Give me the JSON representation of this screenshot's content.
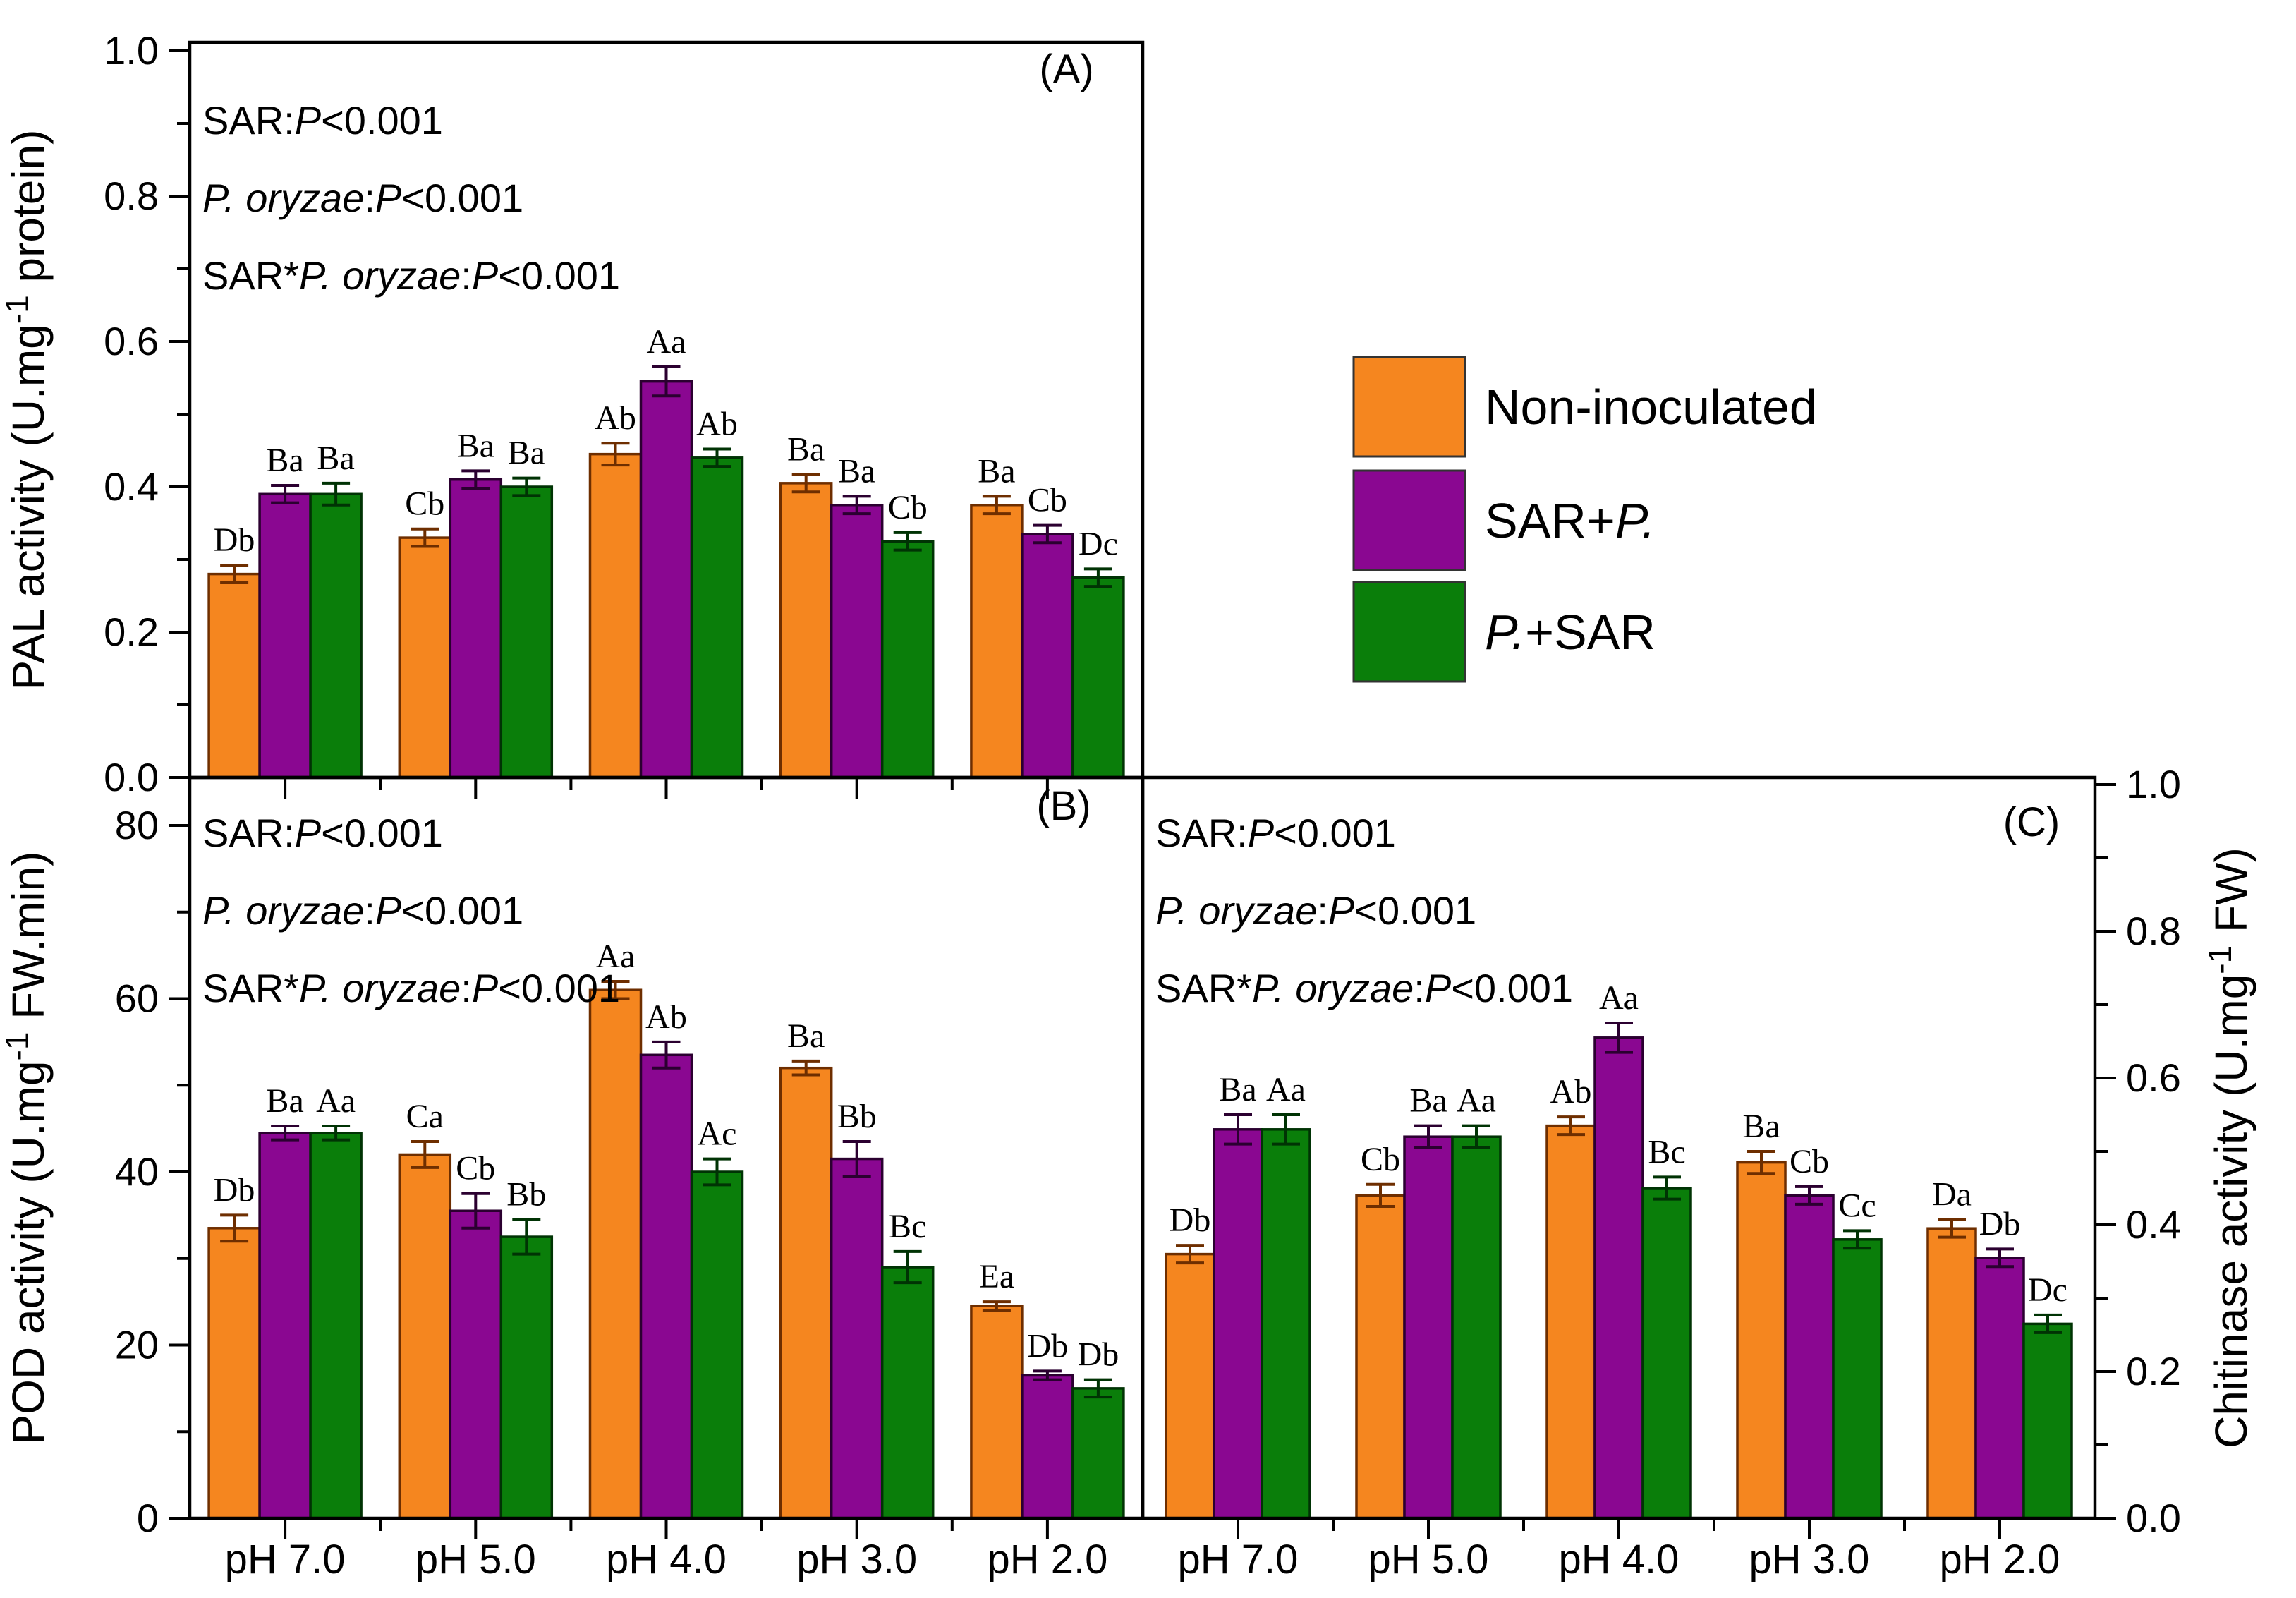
{
  "figure": {
    "colors": {
      "non_inoculated": "#F5861F",
      "sar_p": "#8A0791",
      "p_sar": "#0A7E0A",
      "edge_non_inoculated": "#6E2E00",
      "edge_sar_p": "#2B0030",
      "edge_p_sar": "#003304",
      "axis": "#000000"
    },
    "legend": {
      "items": [
        {
          "key": "non_inoculated",
          "segments": [
            {
              "t": "Non-inoculated"
            }
          ]
        },
        {
          "key": "sar_p",
          "segments": [
            {
              "t": "SAR+"
            },
            {
              "t": "P.",
              "i": true
            }
          ]
        },
        {
          "key": "p_sar",
          "segments": [
            {
              "t": "P.",
              "i": true
            },
            {
              "t": "+SAR"
            }
          ]
        }
      ]
    },
    "stats_lines": [
      [
        {
          "t": "SAR:"
        },
        {
          "t": "P",
          "i": true
        },
        {
          "t": "<0.001"
        }
      ],
      [
        {
          "t": "P. oryzae",
          "i": true
        },
        {
          "t": ":"
        },
        {
          "t": "P",
          "i": true
        },
        {
          "t": "<0.001"
        }
      ],
      [
        {
          "t": "SAR*"
        },
        {
          "t": "P. oryzae",
          "i": true
        },
        {
          "t": ":"
        },
        {
          "t": "P",
          "i": true
        },
        {
          "t": "<0.001"
        }
      ]
    ]
  },
  "chart_data": [
    {
      "id": "A",
      "type": "bar",
      "panel_label": "(A)",
      "ylabel_segments": [
        {
          "t": "PAL activity (U.mg"
        },
        {
          "t": "-1",
          "sup": true
        },
        {
          "t": " protein)"
        }
      ],
      "yaxis": {
        "side": "left",
        "min": 0,
        "max": 1.0,
        "major_ticks": [
          0.0,
          0.2,
          0.4,
          0.6,
          0.8,
          1.0
        ],
        "tick_labels": [
          "0.0",
          "0.2",
          "0.4",
          "0.6",
          "0.8",
          "1.0"
        ],
        "minor_ticks": [
          0.1,
          0.3,
          0.5,
          0.7,
          0.9
        ]
      },
      "categories": [
        "pH 7.0",
        "pH 5.0",
        "pH 4.0",
        "pH 3.0",
        "pH 2.0"
      ],
      "show_xlabels": false,
      "grid": false,
      "series": [
        {
          "name": "Non-inoculated",
          "key": "non_inoculated",
          "values": [
            0.28,
            0.33,
            0.445,
            0.405,
            0.375
          ],
          "errors": [
            0.012,
            0.012,
            0.015,
            0.012,
            0.012
          ],
          "letters": [
            "Db",
            "Cb",
            "Ab",
            "Ba",
            "Ba"
          ]
        },
        {
          "name": "SAR+P.",
          "key": "sar_p",
          "values": [
            0.39,
            0.41,
            0.545,
            0.375,
            0.335
          ],
          "errors": [
            0.012,
            0.012,
            0.02,
            0.012,
            0.012
          ],
          "letters": [
            "Ba",
            "Ba",
            "Aa",
            "Ba",
            "Cb"
          ]
        },
        {
          "name": "P.+SAR",
          "key": "p_sar",
          "values": [
            0.39,
            0.4,
            0.44,
            0.325,
            0.275
          ],
          "errors": [
            0.015,
            0.012,
            0.012,
            0.012,
            0.012
          ],
          "letters": [
            "Ba",
            "Ba",
            "Ab",
            "Cb",
            "Dc"
          ]
        }
      ]
    },
    {
      "id": "B",
      "type": "bar",
      "panel_label": "(B)",
      "ylabel_segments": [
        {
          "t": "POD activity (U.mg"
        },
        {
          "t": "-1",
          "sup": true
        },
        {
          "t": " FW.min)"
        }
      ],
      "yaxis": {
        "side": "left",
        "min": 0,
        "max": 86,
        "major_ticks": [
          0,
          20,
          40,
          60,
          80
        ],
        "tick_labels": [
          "0",
          "20",
          "40",
          "60",
          "80"
        ],
        "minor_ticks": [
          10,
          30,
          50,
          70
        ]
      },
      "categories": [
        "pH 7.0",
        "pH 5.0",
        "pH 4.0",
        "pH 3.0",
        "pH 2.0"
      ],
      "show_xlabels": true,
      "grid": false,
      "series": [
        {
          "name": "Non-inoculated",
          "key": "non_inoculated",
          "values": [
            33.5,
            42,
            61,
            52,
            24.5
          ],
          "errors": [
            1.5,
            1.5,
            1.0,
            0.8,
            0.5
          ],
          "letters": [
            "Db",
            "Ca",
            "Aa",
            "Ba",
            "Ea"
          ]
        },
        {
          "name": "SAR+P.",
          "key": "sar_p",
          "values": [
            44.5,
            35.5,
            53.5,
            41.5,
            16.5
          ],
          "errors": [
            0.8,
            2.0,
            1.5,
            2.0,
            0.5
          ],
          "letters": [
            "Ba",
            "Cb",
            "Ab",
            "Bb",
            "Db"
          ]
        },
        {
          "name": "P.+SAR",
          "key": "p_sar",
          "values": [
            44.5,
            32.5,
            40,
            29,
            15
          ],
          "errors": [
            0.8,
            2.0,
            1.5,
            1.8,
            1.0
          ],
          "letters": [
            "Aa",
            "Bb",
            "Ac",
            "Bc",
            "Db"
          ]
        }
      ]
    },
    {
      "id": "C",
      "type": "bar",
      "panel_label": "(C)",
      "ylabel_segments": [
        {
          "t": "Chitinase activity (U.mg"
        },
        {
          "t": "-1",
          "sup": true
        },
        {
          "t": " FW)"
        }
      ],
      "yaxis": {
        "side": "right",
        "min": 0,
        "max": 1.0,
        "major_ticks": [
          0.0,
          0.2,
          0.4,
          0.6,
          0.8,
          1.0
        ],
        "tick_labels": [
          "0.0",
          "0.2",
          "0.4",
          "0.6",
          "0.8",
          "1.0"
        ],
        "minor_ticks": [
          0.1,
          0.3,
          0.5,
          0.7,
          0.9
        ]
      },
      "categories": [
        "pH 7.0",
        "pH 5.0",
        "pH 4.0",
        "pH 3.0",
        "pH 2.0"
      ],
      "show_xlabels": true,
      "grid": false,
      "series": [
        {
          "name": "Non-inoculated",
          "key": "non_inoculated",
          "values": [
            0.36,
            0.44,
            0.535,
            0.485,
            0.395
          ],
          "errors": [
            0.012,
            0.015,
            0.012,
            0.015,
            0.012
          ],
          "letters": [
            "Db",
            "Cb",
            "Ab",
            "Ba",
            "Da"
          ]
        },
        {
          "name": "SAR+P.",
          "key": "sar_p",
          "values": [
            0.53,
            0.52,
            0.655,
            0.44,
            0.355
          ],
          "errors": [
            0.02,
            0.015,
            0.02,
            0.012,
            0.012
          ],
          "letters": [
            "Ba",
            "Ba",
            "Aa",
            "Cb",
            "Db"
          ]
        },
        {
          "name": "P.+SAR",
          "key": "p_sar",
          "values": [
            0.53,
            0.52,
            0.45,
            0.38,
            0.265
          ],
          "errors": [
            0.02,
            0.015,
            0.015,
            0.012,
            0.012
          ],
          "letters": [
            "Aa",
            "Aa",
            "Bc",
            "Cc",
            "Dc"
          ]
        }
      ]
    }
  ]
}
